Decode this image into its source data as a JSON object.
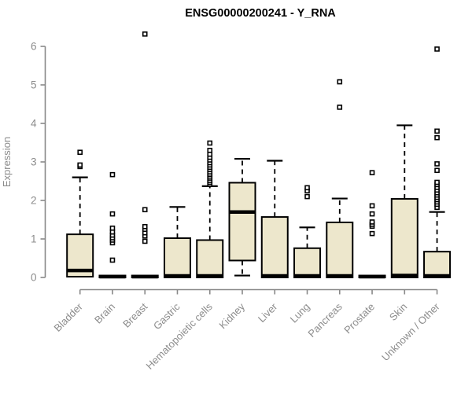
{
  "chart_data": {
    "type": "boxplot",
    "title": "ENSG00000200241 - Y_RNA",
    "ylabel": "Expression",
    "xlabel": "",
    "ylim": [
      0,
      6
    ],
    "yticks": [
      0,
      1,
      2,
      3,
      4,
      5,
      6
    ],
    "grid": false,
    "legend": "none",
    "categories": [
      "Bladder",
      "Brain",
      "Breast",
      "Gastric",
      "Hematopoietic cells",
      "Kidney",
      "Liver",
      "Lung",
      "Pancreas",
      "Prostate",
      "Skin",
      "Unknown / Other"
    ],
    "series": [
      {
        "name": "Bladder",
        "whisker_low": 0.02,
        "q1": 0.02,
        "median": 0.18,
        "q3": 1.12,
        "whisker_high": 2.6,
        "outliers": [
          2.88,
          2.92,
          3.25
        ]
      },
      {
        "name": "Brain",
        "whisker_low": 0.0,
        "q1": 0.0,
        "median": 0.02,
        "q3": 0.05,
        "whisker_high": 0.05,
        "outliers": [
          0.45,
          0.9,
          0.97,
          1.03,
          1.1,
          1.18,
          1.28,
          1.65,
          2.67
        ]
      },
      {
        "name": "Breast",
        "whisker_low": 0.0,
        "q1": 0.0,
        "median": 0.02,
        "q3": 0.05,
        "whisker_high": 0.05,
        "outliers": [
          0.94,
          1.08,
          1.16,
          1.25,
          1.32,
          1.76,
          6.32
        ]
      },
      {
        "name": "Gastric",
        "whisker_low": 0.0,
        "q1": 0.0,
        "median": 0.04,
        "q3": 1.02,
        "whisker_high": 1.83,
        "outliers": []
      },
      {
        "name": "Hematopoietic cells",
        "whisker_low": 0.0,
        "q1": 0.0,
        "median": 0.04,
        "q3": 0.97,
        "whisker_high": 2.37,
        "outliers": [
          2.42,
          2.47,
          2.52,
          2.58,
          2.63,
          2.68,
          2.74,
          2.8,
          2.86,
          2.92,
          2.98,
          3.05,
          3.12,
          3.2,
          3.3,
          3.49
        ]
      },
      {
        "name": "Kidney",
        "whisker_low": 0.05,
        "q1": 0.44,
        "median": 1.7,
        "q3": 2.46,
        "whisker_high": 3.08,
        "outliers": []
      },
      {
        "name": "Liver",
        "whisker_low": 0.0,
        "q1": 0.0,
        "median": 0.04,
        "q3": 1.57,
        "whisker_high": 3.03,
        "outliers": []
      },
      {
        "name": "Lung",
        "whisker_low": 0.0,
        "q1": 0.0,
        "median": 0.04,
        "q3": 0.76,
        "whisker_high": 1.3,
        "outliers": [
          2.1,
          2.25,
          2.33
        ]
      },
      {
        "name": "Pancreas",
        "whisker_low": 0.0,
        "q1": 0.0,
        "median": 0.04,
        "q3": 1.43,
        "whisker_high": 2.05,
        "outliers": [
          4.42,
          5.08
        ]
      },
      {
        "name": "Prostate",
        "whisker_low": 0.0,
        "q1": 0.0,
        "median": 0.02,
        "q3": 0.05,
        "whisker_high": 0.05,
        "outliers": [
          1.14,
          1.33,
          1.38,
          1.44,
          1.65,
          1.86,
          2.72
        ]
      },
      {
        "name": "Skin",
        "whisker_low": 0.0,
        "q1": 0.0,
        "median": 0.05,
        "q3": 2.04,
        "whisker_high": 3.95,
        "outliers": []
      },
      {
        "name": "Unknown / Other",
        "whisker_low": 0.0,
        "q1": 0.0,
        "median": 0.04,
        "q3": 0.67,
        "whisker_high": 1.7,
        "outliers": [
          1.82,
          1.9,
          1.96,
          2.02,
          2.08,
          2.14,
          2.2,
          2.27,
          2.34,
          2.41,
          2.47,
          2.78,
          2.95,
          3.63,
          3.8,
          5.93
        ]
      }
    ]
  },
  "colors": {
    "background": "#ffffff",
    "box_fill": "#ede7cc",
    "box_border": "#000000",
    "median": "#000000",
    "whisker": "#000000",
    "outlier_stroke": "#000000",
    "outlier_fill": "#ffffff",
    "axis": "#888888",
    "tick_label": "#8c8c8c",
    "title": "#000000"
  }
}
